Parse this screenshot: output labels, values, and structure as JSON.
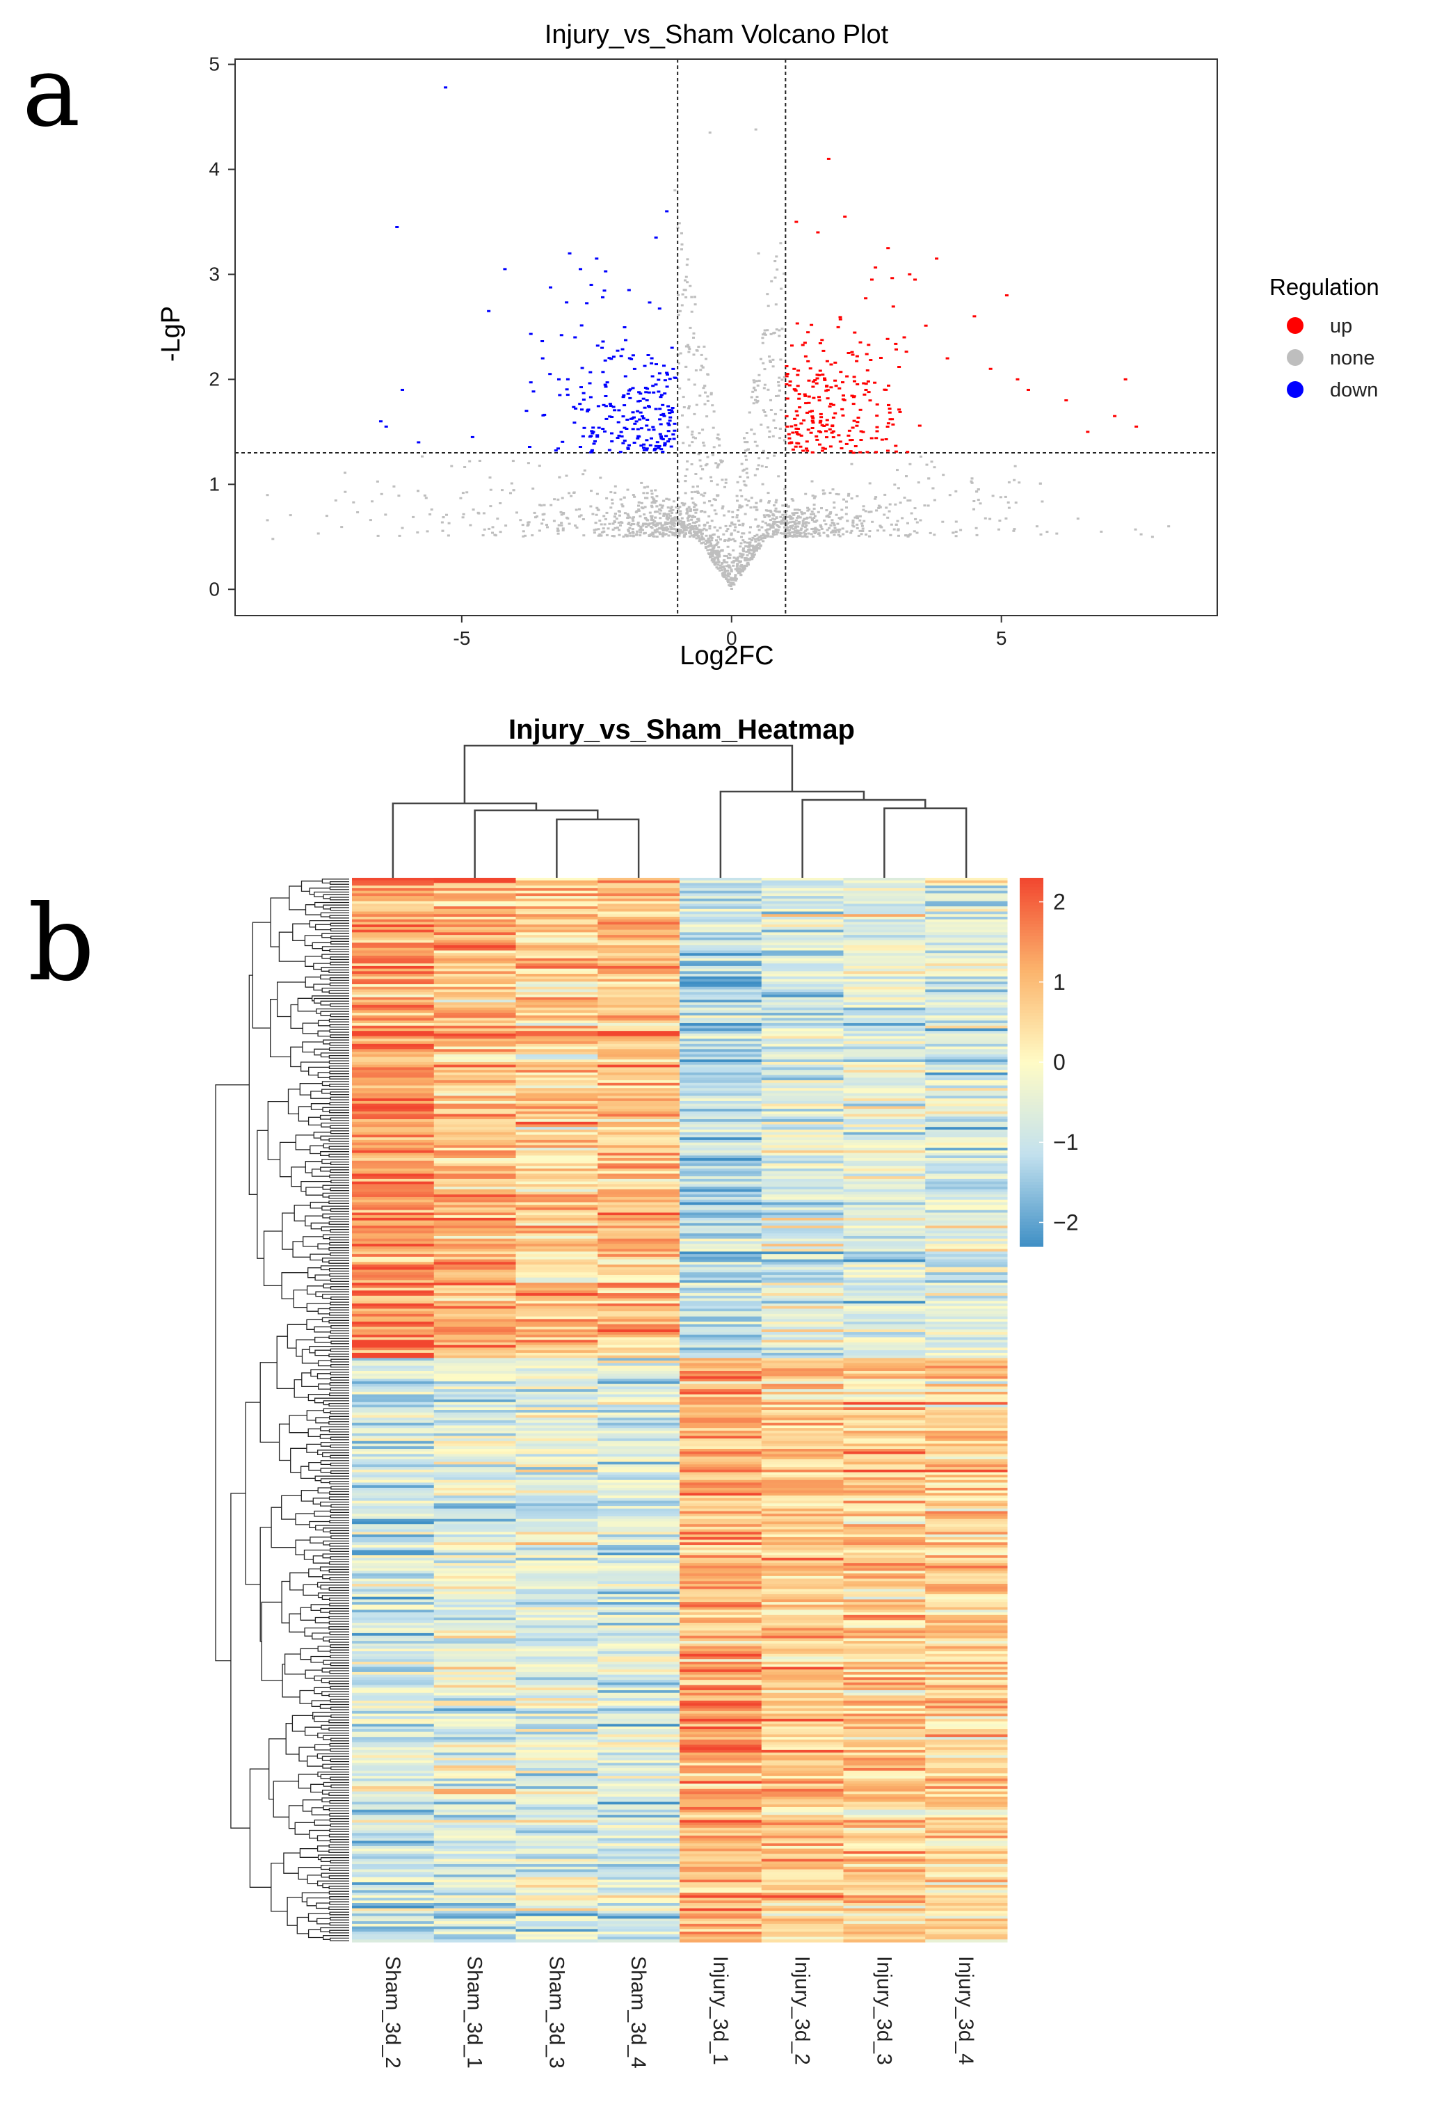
{
  "panels": {
    "a": "a",
    "b": "b"
  },
  "chart_data": [
    {
      "type": "scatter",
      "title": "Injury_vs_Sham Volcano Plot",
      "xlabel": "Log2FC",
      "ylabel": "-LgP",
      "xlim": [
        -9.2,
        9.0
      ],
      "ylim": [
        -0.25,
        5.05
      ],
      "xticks": [
        -5,
        0,
        5
      ],
      "xtick_labels": [
        "-5",
        "0",
        "5"
      ],
      "yticks": [
        0,
        1,
        2,
        3,
        4,
        5
      ],
      "ytick_labels": [
        "0",
        "1",
        "2",
        "3",
        "4",
        "5"
      ],
      "thresholds": {
        "log2fc": [
          -1,
          1
        ],
        "lgp": 1.3
      },
      "grid": false,
      "legend": {
        "title": "Regulation",
        "placement": "right",
        "entries": [
          {
            "label": "up",
            "color": "#ff0000"
          },
          {
            "label": "none",
            "color": "#bebebe"
          },
          {
            "label": "down",
            "color": "#0000ff"
          }
        ]
      },
      "series": [
        {
          "name": "up",
          "color": "#ff0000",
          "points": [
            [
              1.8,
              4.1
            ],
            [
              2.1,
              3.55
            ],
            [
              1.2,
              3.5
            ],
            [
              1.6,
              3.4
            ],
            [
              2.9,
              3.25
            ],
            [
              3.8,
              3.15
            ],
            [
              2.6,
              2.95
            ],
            [
              3.4,
              2.95
            ],
            [
              3.3,
              3.0
            ],
            [
              4.5,
              2.6
            ],
            [
              5.1,
              2.8
            ],
            [
              3.2,
              2.4
            ],
            [
              4.0,
              2.2
            ],
            [
              4.8,
              2.1
            ],
            [
              5.3,
              2.0
            ],
            [
              5.5,
              1.9
            ],
            [
              6.2,
              1.8
            ],
            [
              7.3,
              2.0
            ],
            [
              7.1,
              1.65
            ],
            [
              7.5,
              1.55
            ],
            [
              6.6,
              1.5
            ]
          ]
        },
        {
          "name": "down",
          "color": "#0000ff",
          "points": [
            [
              -5.3,
              4.78
            ],
            [
              -6.2,
              3.45
            ],
            [
              -1.2,
              3.6
            ],
            [
              -1.4,
              3.35
            ],
            [
              -4.2,
              3.05
            ],
            [
              -2.8,
              3.05
            ],
            [
              -2.5,
              3.15
            ],
            [
              -3.0,
              3.2
            ],
            [
              -2.6,
              2.9
            ],
            [
              -4.5,
              2.65
            ],
            [
              -1.9,
              2.85
            ],
            [
              -6.1,
              1.9
            ],
            [
              -6.5,
              1.6
            ],
            [
              -6.4,
              1.55
            ],
            [
              -5.8,
              1.4
            ],
            [
              -4.8,
              1.45
            ],
            [
              -3.8,
              1.7
            ],
            [
              -3.5,
              2.2
            ],
            [
              -3.2,
              2.0
            ],
            [
              -2.9,
              2.4
            ],
            [
              -2.4,
              2.3
            ]
          ]
        },
        {
          "name": "none",
          "color": "#bebebe",
          "points": [
            [
              -0.4,
              4.35
            ],
            [
              0.45,
              4.38
            ],
            [
              -1.05,
              3.8
            ],
            [
              0.5,
              3.2
            ],
            [
              -8.5,
              0.48
            ],
            [
              7.8,
              0.5
            ],
            [
              8.1,
              0.6
            ],
            [
              -7.5,
              0.7
            ]
          ]
        }
      ]
    },
    {
      "type": "heatmap",
      "title": "Injury_vs_Sham_Heatmap",
      "columns": [
        "Sham_3d_2",
        "Sham_3d_1",
        "Sham_3d_3",
        "Sham_3d_4",
        "Injury_3d_1",
        "Injury_3d_2",
        "Injury_3d_3",
        "Injury_3d_4"
      ],
      "n_rows": 410,
      "zlim": [
        -2.3,
        2.3
      ],
      "colorbar": {
        "ticks": [
          2,
          1,
          0,
          -1,
          -2
        ],
        "tick_labels": [
          "2",
          "1",
          "0",
          "−1",
          "−2"
        ],
        "colors": [
          "#3f8fc5",
          "#c3e1ee",
          "#fffbc5",
          "#fbb36c",
          "#f2462f"
        ]
      },
      "column_dendrogram": "((Sham_3d_2,(Sham_3d_1,(Sham_3d_3,Sham_3d_4))),(Injury_3d_1,(Injury_3d_2,(Injury_3d_3,Injury_3d_4))))",
      "row_blocks": [
        {
          "rows": "1-185",
          "group_mean": [
            1.5,
            1.1,
            0.7,
            1.0,
            -1.2,
            -0.6,
            -0.6,
            -0.7
          ]
        },
        {
          "rows": "186-410",
          "group_mean": [
            -0.8,
            -0.6,
            -0.6,
            -0.7,
            1.1,
            0.8,
            0.8,
            0.7
          ]
        }
      ]
    }
  ]
}
